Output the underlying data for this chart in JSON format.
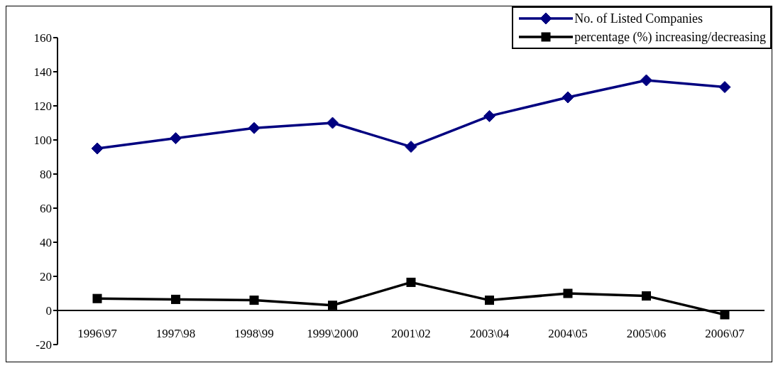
{
  "chart_data": {
    "type": "line",
    "categories": [
      "1996\\97",
      "1997\\98",
      "1998\\99",
      "1999\\2000",
      "2001\\02",
      "2003\\04",
      "2004\\05",
      "2005\\06",
      "2006\\07"
    ],
    "series": [
      {
        "name": "No. of Listed Companies",
        "color": "#000080",
        "marker": "diamond",
        "values": [
          95,
          101,
          107,
          110,
          96,
          114,
          125,
          135,
          131
        ]
      },
      {
        "name": "percentage (%) increasing/decreasing",
        "color": "#000000",
        "marker": "square",
        "values": [
          7,
          6.5,
          6,
          3,
          16.5,
          6,
          10,
          8.5,
          -2.5
        ]
      }
    ],
    "ylim": [
      -20,
      160
    ],
    "yticks": [
      -20,
      0,
      20,
      40,
      60,
      80,
      100,
      120,
      140,
      160
    ],
    "grid": false,
    "legend": "top right",
    "line_style": "solid"
  }
}
